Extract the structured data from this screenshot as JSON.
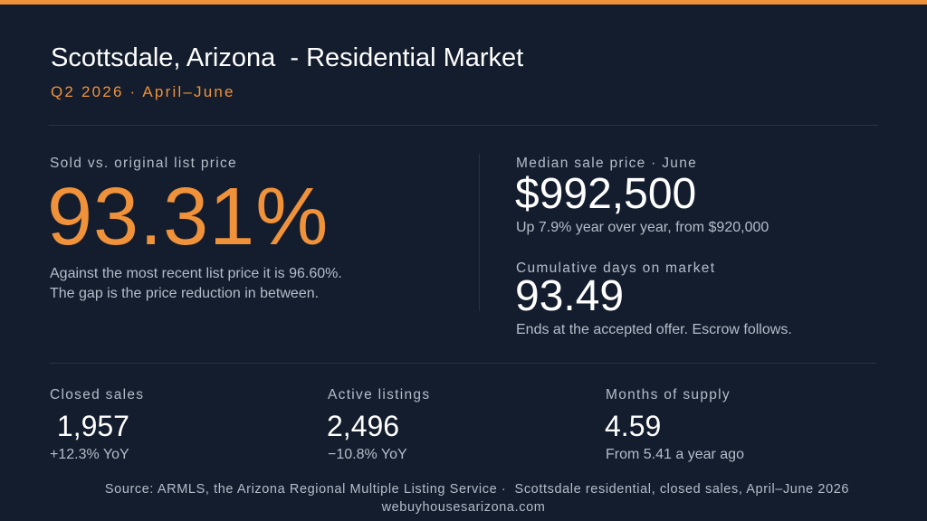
{
  "colors": {
    "background": "#131d2d",
    "accent": "#f0923a",
    "text": "#ffffff",
    "muted": "#b5bdca",
    "rule": "#26324a"
  },
  "header": {
    "title": "Scottsdale, Arizona  - Residential Market",
    "subtitle": "Q2 2026 · April–June"
  },
  "sold_vs_list": {
    "label": "Sold vs. original list price",
    "value": "93.31%",
    "note_line1": "Against the most recent list price it is 96.60%.",
    "note_line2": "The gap is the price reduction in between."
  },
  "median_price": {
    "label": "Median sale price · June",
    "value": "$992,500",
    "note": "Up 7.9% year over year, from $920,000"
  },
  "days_on_market": {
    "label": "Cumulative days on market",
    "value": "93.49",
    "note": "Ends at the accepted offer. Escrow follows."
  },
  "stats": [
    {
      "label": "Closed sales",
      "value": " 1,957",
      "sub": "+12.3% YoY"
    },
    {
      "label": "Active listings",
      "value": "2,496",
      "sub": "−10.8% YoY"
    },
    {
      "label": "Months of supply",
      "value": "4.59",
      "sub": "From 5.41 a year ago"
    }
  ],
  "footer": {
    "source": "Source: ARMLS, the Arizona Regional Multiple Listing Service ·  Scottsdale residential, closed sales, April–June 2026",
    "site": "webuyhousesarizona.com"
  }
}
